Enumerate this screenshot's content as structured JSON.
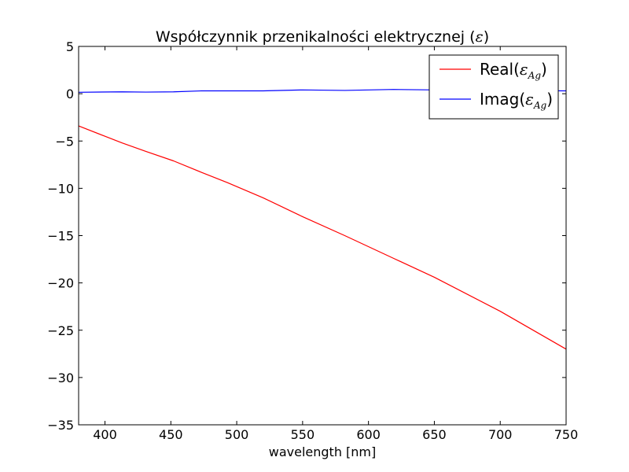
{
  "chart_data": {
    "type": "line",
    "title": {
      "prefix": "Współczynnik przenikalności elektrycznej (",
      "symbol": "ε",
      "suffix": ")"
    },
    "xlabel": "wavelength [nm]",
    "ylabel": "",
    "xlim": [
      380,
      750
    ],
    "ylim": [
      -35,
      5
    ],
    "xticks": [
      400,
      450,
      500,
      550,
      600,
      650,
      700,
      750
    ],
    "yticks": [
      5,
      0,
      -5,
      -10,
      -15,
      -20,
      -25,
      -30,
      -35
    ],
    "xtick_labels": [
      "400",
      "450",
      "500",
      "550",
      "600",
      "650",
      "700",
      "750"
    ],
    "ytick_labels": [
      "5",
      "0",
      "−5",
      "−10",
      "−15",
      "−20",
      "−25",
      "−30",
      "−35"
    ],
    "grid": false,
    "legend_position": "top-right",
    "series": [
      {
        "name": "Real(εAg)",
        "legend": {
          "prefix": "Real(",
          "symbol": "ε",
          "subscript": "Ag",
          "suffix": ")"
        },
        "color": "#ff0000",
        "x": [
          380,
          400,
          413,
          431,
          452,
          473,
          493,
          520,
          550,
          582,
          619,
          650,
          700,
          750
        ],
        "y": [
          -3.4,
          -4.5,
          -5.2,
          -6.1,
          -7.1,
          -8.3,
          -9.4,
          -11.0,
          -13.0,
          -15.0,
          -17.4,
          -19.4,
          -23.0,
          -27.0
        ]
      },
      {
        "name": "Imag(εAg)",
        "legend": {
          "prefix": "Imag(",
          "symbol": "ε",
          "subscript": "Ag",
          "suffix": ")"
        },
        "color": "#0000ff",
        "x": [
          380,
          413,
          431,
          452,
          473,
          520,
          550,
          582,
          619,
          650,
          700,
          750
        ],
        "y": [
          0.15,
          0.2,
          0.17,
          0.2,
          0.3,
          0.3,
          0.4,
          0.35,
          0.45,
          0.4,
          0.35,
          0.3
        ]
      }
    ]
  }
}
